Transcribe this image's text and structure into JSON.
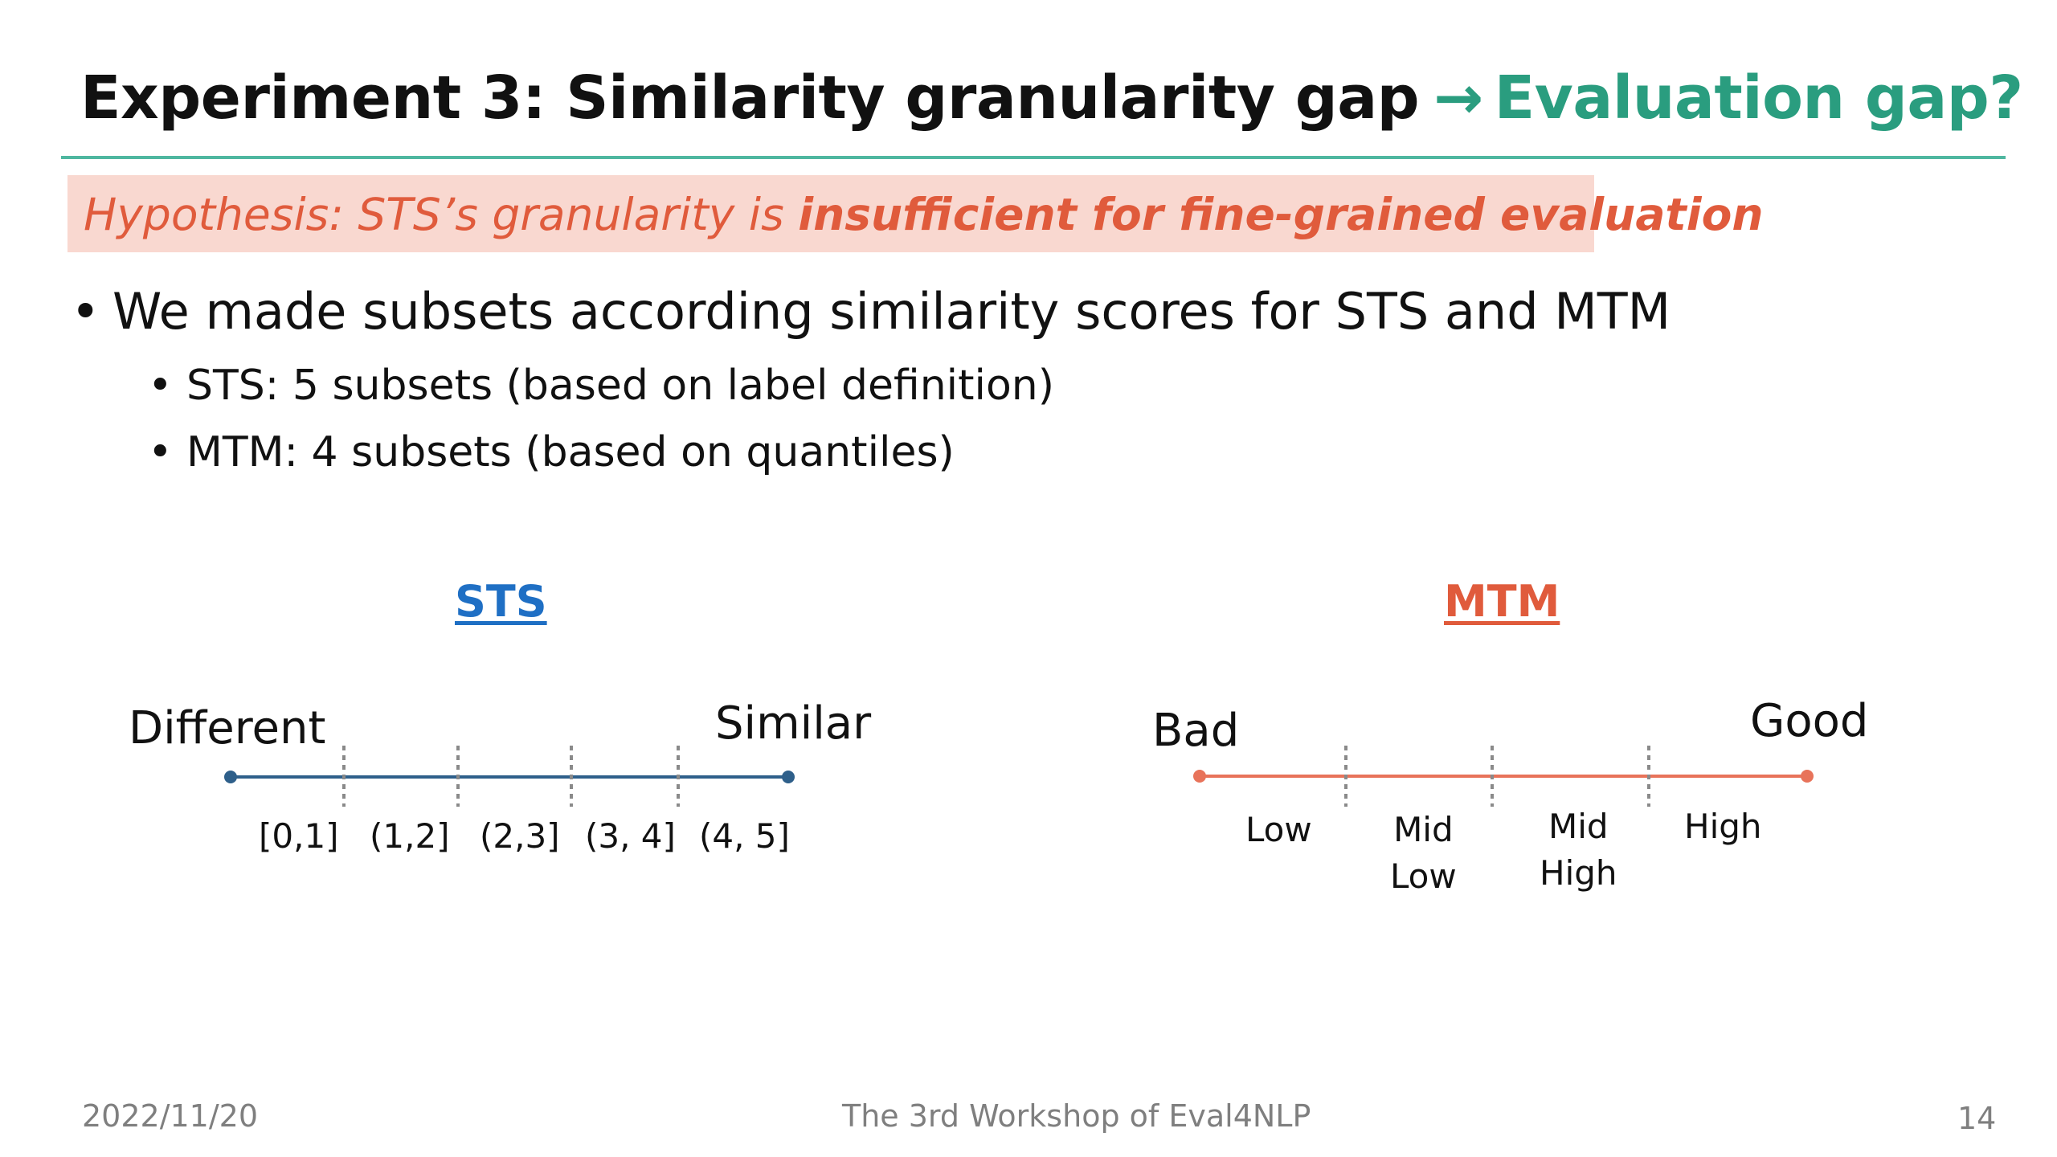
{
  "slide": {
    "title": {
      "main": "Experiment 3: Similarity granularity gap",
      "arrow": "→",
      "accent": "Evaluation gap?"
    },
    "hypothesis": {
      "prefix": "Hypothesis: STS’s granularity is ",
      "emphasis": "insufficient for fine-grained evaluation"
    },
    "bullets": {
      "main": "We made subsets according similarity scores for STS and MTM",
      "sub": [
        "STS: 5 subsets (based on label definition)",
        "MTM: 4 subsets (based on quantiles)"
      ]
    },
    "sts": {
      "heading": "STS",
      "left_label": "Different",
      "right_label": "Similar",
      "line_color": "#2e5f8a",
      "bins": [
        "[0,1]",
        "(1,2]",
        "(2,3]",
        "(3, 4]",
        "(4, 5]"
      ]
    },
    "mtm": {
      "heading": "MTM",
      "left_label": "Bad",
      "right_label": "Good",
      "line_color": "#e8735a",
      "bins": [
        {
          "line1": "Low",
          "line2": ""
        },
        {
          "line1": "Mid",
          "line2": "Low"
        },
        {
          "line1": "Mid",
          "line2": "High"
        },
        {
          "line1": "High",
          "line2": ""
        }
      ]
    },
    "footer": {
      "date": "2022/11/20",
      "event": "The 3rd Workshop of Eval4NLP",
      "page": "14"
    },
    "colors": {
      "accent_teal": "#2a9d7f",
      "hypothesis_red": "#e05b3c",
      "hypothesis_bg": "#f9d8d0",
      "sts_blue": "#1f6fc4"
    }
  }
}
